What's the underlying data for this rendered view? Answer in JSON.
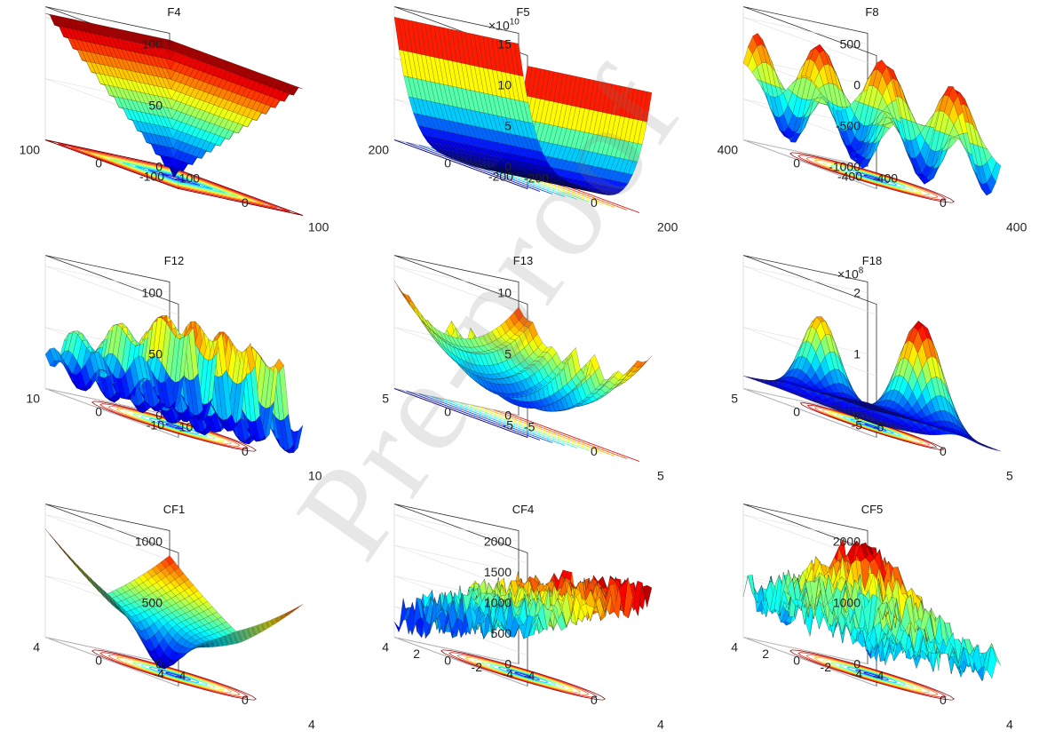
{
  "watermark": "Pre-proof",
  "chart_data": [
    {
      "type": "surface",
      "title": "F4",
      "surface": "v",
      "contour": "square",
      "exponent": "",
      "z_ticks": [
        "0",
        "50",
        "100"
      ],
      "y_ticks": [
        "100",
        "0",
        "-100"
      ],
      "x_ticks": [
        "-100",
        "0",
        "100"
      ]
    },
    {
      "type": "surface",
      "title": "F5",
      "surface": "valley",
      "contour": "lines",
      "exponent": "10",
      "z_ticks": [
        "0",
        "5",
        "10",
        "15"
      ],
      "y_ticks": [
        "200",
        "0",
        "-200"
      ],
      "x_ticks": [
        "-200",
        "0",
        "200"
      ]
    },
    {
      "type": "surface",
      "title": "F8",
      "surface": "waves",
      "contour": "blobs",
      "exponent": "",
      "z_ticks": [
        "-1000",
        "-500",
        "0",
        "500"
      ],
      "y_ticks": [
        "400",
        "0",
        "-400"
      ],
      "x_ticks": [
        "-400",
        "0",
        "400"
      ]
    },
    {
      "type": "surface",
      "title": "F12",
      "surface": "spikes",
      "contour": "waves",
      "exponent": "",
      "z_ticks": [
        "0",
        "50",
        "100"
      ],
      "y_ticks": [
        "10",
        "0",
        "-10"
      ],
      "x_ticks": [
        "-10",
        "0",
        "10"
      ]
    },
    {
      "type": "surface",
      "title": "F13",
      "surface": "bowl",
      "contour": "lines",
      "exponent": "",
      "z_ticks": [
        "0",
        "5",
        "10"
      ],
      "y_ticks": [
        "5",
        "0",
        "-5"
      ],
      "x_ticks": [
        "-5",
        "0",
        "5"
      ]
    },
    {
      "type": "surface",
      "title": "F18",
      "surface": "peaks",
      "contour": "ellipse",
      "exponent": "8",
      "z_ticks": [
        "0",
        "1",
        "2"
      ],
      "y_ticks": [
        "5",
        "0",
        "-5"
      ],
      "x_ticks": [
        "-5",
        "0",
        "5"
      ]
    },
    {
      "type": "surface",
      "title": "CF1",
      "surface": "bowl4",
      "contour": "blobs",
      "exponent": "",
      "z_ticks": [
        "0",
        "500",
        "1000"
      ],
      "y_ticks": [
        "4",
        "0",
        "-4"
      ],
      "x_ticks": [
        "-4",
        "0",
        "4"
      ]
    },
    {
      "type": "surface",
      "title": "CF4",
      "surface": "noisy",
      "contour": "noise",
      "exponent": "",
      "z_ticks": [
        "0",
        "500",
        "1000",
        "1500",
        "2000"
      ],
      "y_ticks": [
        "4",
        "2",
        "0",
        "-2",
        "-4"
      ],
      "x_ticks": [
        "-4",
        "0",
        "4"
      ]
    },
    {
      "type": "surface",
      "title": "CF5",
      "surface": "plateau",
      "contour": "blobs",
      "exponent": "",
      "z_ticks": [
        "0",
        "1000",
        "2000"
      ],
      "y_ticks": [
        "4",
        "2",
        "0",
        "-2",
        "-4"
      ],
      "x_ticks": [
        "-4",
        "0",
        "4"
      ]
    }
  ]
}
